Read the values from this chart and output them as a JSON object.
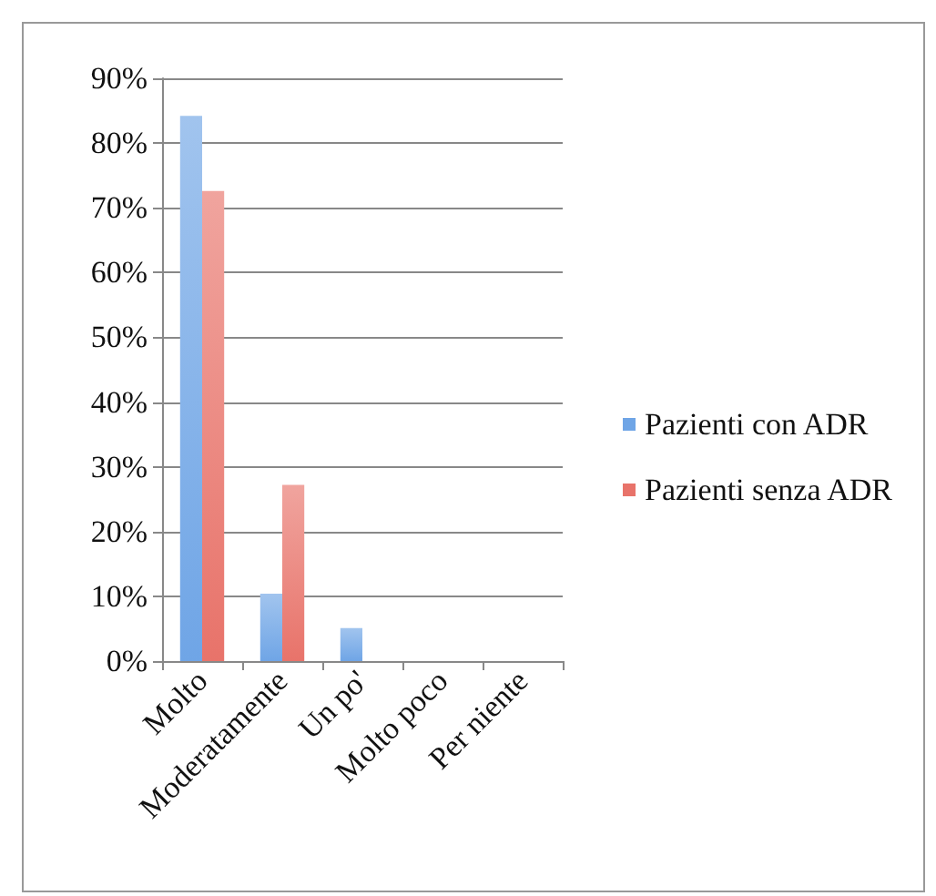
{
  "chart_data": {
    "type": "bar",
    "categories": [
      "Molto",
      "Moderatamente",
      "Un po'",
      "Molto poco",
      "Per niente"
    ],
    "series": [
      {
        "name": "Pazienti con ADR",
        "color": "#6fa5e6",
        "values": [
          84.2,
          10.4,
          5.1,
          0,
          0
        ]
      },
      {
        "name": "Pazienti senza ADR",
        "color": "#e8736a",
        "values": [
          72.6,
          27.2,
          0,
          0,
          0
        ]
      }
    ],
    "ylim": [
      0,
      90
    ],
    "yticks": [
      {
        "value": 0,
        "label": "0%"
      },
      {
        "value": 10,
        "label": "10%"
      },
      {
        "value": 20,
        "label": "20%"
      },
      {
        "value": 30,
        "label": "30%"
      },
      {
        "value": 40,
        "label": "40%"
      },
      {
        "value": 50,
        "label": "50%"
      },
      {
        "value": 60,
        "label": "60%"
      },
      {
        "value": 70,
        "label": "70%"
      },
      {
        "value": 80,
        "label": "80%"
      },
      {
        "value": 90,
        "label": "90%"
      }
    ],
    "grid": "y",
    "legend": "right"
  }
}
